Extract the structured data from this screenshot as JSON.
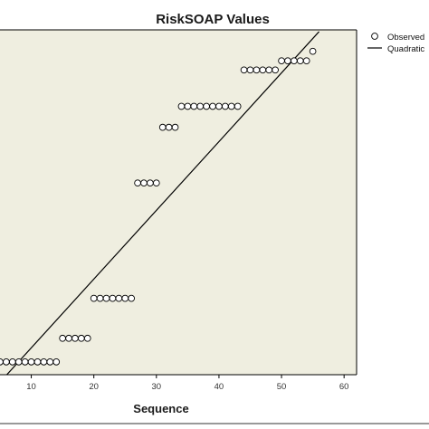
{
  "chart_data": {
    "type": "scatter",
    "title": "RiskSOAP Values",
    "xlabel": "Sequence",
    "ylabel": "",
    "xlim": [
      5,
      62
    ],
    "ylim": [
      0,
      1
    ],
    "x_ticks": [
      10,
      20,
      30,
      40,
      50,
      60
    ],
    "grid": false,
    "legend_position": "top-right",
    "plot_background": "#efeee0",
    "series": [
      {
        "name": "Observed",
        "marker": "open-circle",
        "points": [
          [
            5,
            0.017
          ],
          [
            6,
            0.017
          ],
          [
            7,
            0.017
          ],
          [
            8,
            0.017
          ],
          [
            9,
            0.017
          ],
          [
            10,
            0.017
          ],
          [
            11,
            0.017
          ],
          [
            12,
            0.017
          ],
          [
            13,
            0.017
          ],
          [
            14,
            0.017
          ],
          [
            15,
            0.089
          ],
          [
            16,
            0.089
          ],
          [
            17,
            0.089
          ],
          [
            18,
            0.089
          ],
          [
            19,
            0.089
          ],
          [
            20,
            0.211
          ],
          [
            21,
            0.211
          ],
          [
            22,
            0.211
          ],
          [
            23,
            0.211
          ],
          [
            24,
            0.211
          ],
          [
            25,
            0.211
          ],
          [
            26,
            0.211
          ],
          [
            27,
            0.563
          ],
          [
            28,
            0.563
          ],
          [
            29,
            0.563
          ],
          [
            30,
            0.563
          ],
          [
            31,
            0.733
          ],
          [
            32,
            0.733
          ],
          [
            33,
            0.733
          ],
          [
            34,
            0.797
          ],
          [
            35,
            0.797
          ],
          [
            36,
            0.797
          ],
          [
            37,
            0.797
          ],
          [
            38,
            0.797
          ],
          [
            39,
            0.797
          ],
          [
            40,
            0.797
          ],
          [
            41,
            0.797
          ],
          [
            42,
            0.797
          ],
          [
            43,
            0.797
          ],
          [
            44,
            0.908
          ],
          [
            45,
            0.908
          ],
          [
            46,
            0.908
          ],
          [
            47,
            0.908
          ],
          [
            48,
            0.908
          ],
          [
            49,
            0.908
          ],
          [
            50,
            0.936
          ],
          [
            51,
            0.936
          ],
          [
            52,
            0.936
          ],
          [
            53,
            0.936
          ],
          [
            54,
            0.936
          ],
          [
            55,
            0.965
          ]
        ]
      },
      {
        "name": "Quadratic",
        "type": "line",
        "points": [
          [
            5,
            -0.045
          ],
          [
            56,
            1.025
          ]
        ]
      }
    ]
  }
}
